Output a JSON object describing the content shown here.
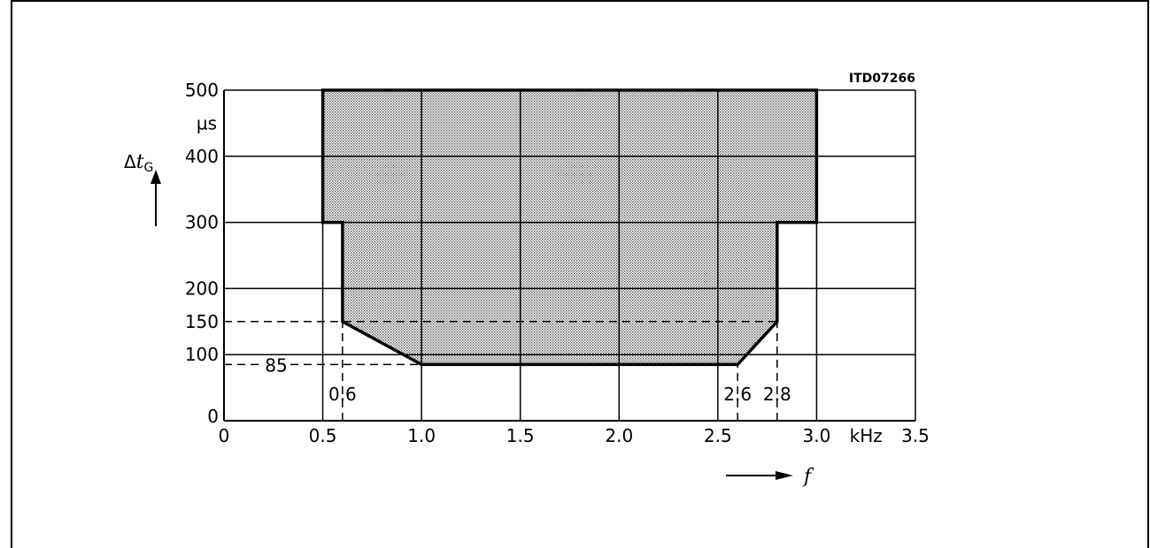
{
  "chart_data": {
    "type": "area",
    "figure_id": "ITD07266",
    "x_unit": "kHz",
    "x_symbol": "f",
    "y_unit": "µs",
    "y_symbol_main": "Δt",
    "y_symbol_sub": "G",
    "xlim": [
      0,
      3.5
    ],
    "ylim": [
      0,
      500
    ],
    "x_ticks": [
      {
        "v": 0,
        "label": "0"
      },
      {
        "v": 0.5,
        "label": "0.5"
      },
      {
        "v": 1.0,
        "label": "1.0"
      },
      {
        "v": 1.5,
        "label": "1.5"
      },
      {
        "v": 2.0,
        "label": "2.0"
      },
      {
        "v": 2.5,
        "label": "2.5"
      },
      {
        "v": 3.0,
        "label": "3.0"
      },
      {
        "v": 3.5,
        "label": "3.5"
      }
    ],
    "y_ticks": [
      {
        "v": 0,
        "label": "0"
      },
      {
        "v": 100,
        "label": "100"
      },
      {
        "v": 150,
        "label": "150"
      },
      {
        "v": 200,
        "label": "200"
      },
      {
        "v": 300,
        "label": "300"
      },
      {
        "v": 400,
        "label": "400"
      },
      {
        "v": 500,
        "label": "500"
      }
    ],
    "grid_x": [
      0.5,
      1.0,
      1.5,
      2.0,
      2.5,
      3.0,
      3.5
    ],
    "grid_y": [
      100,
      200,
      300,
      400,
      500
    ],
    "region": [
      [
        0.5,
        500
      ],
      [
        3.0,
        500
      ],
      [
        3.0,
        300
      ],
      [
        2.8,
        300
      ],
      [
        2.8,
        150
      ],
      [
        2.6,
        85
      ],
      [
        1.0,
        85
      ],
      [
        0.6,
        150
      ],
      [
        0.6,
        300
      ],
      [
        0.5,
        300
      ]
    ],
    "dashed_lines": [
      {
        "from": [
          0,
          150
        ],
        "to": [
          2.8,
          150
        ]
      },
      {
        "from": [
          0,
          85
        ],
        "to": [
          1.0,
          85
        ]
      },
      {
        "from": [
          0.6,
          0
        ],
        "to": [
          0.6,
          150
        ]
      },
      {
        "from": [
          2.6,
          0
        ],
        "to": [
          2.6,
          85
        ]
      },
      {
        "from": [
          2.8,
          0
        ],
        "to": [
          2.8,
          150
        ]
      }
    ],
    "annotations": [
      {
        "text": "85",
        "x": 0.25,
        "y": 85
      },
      {
        "text": "0.6",
        "x": 0.6,
        "y": 40
      },
      {
        "text": "2.6",
        "x": 2.6,
        "y": 40
      },
      {
        "text": "2.8",
        "x": 2.8,
        "y": 40
      }
    ]
  }
}
